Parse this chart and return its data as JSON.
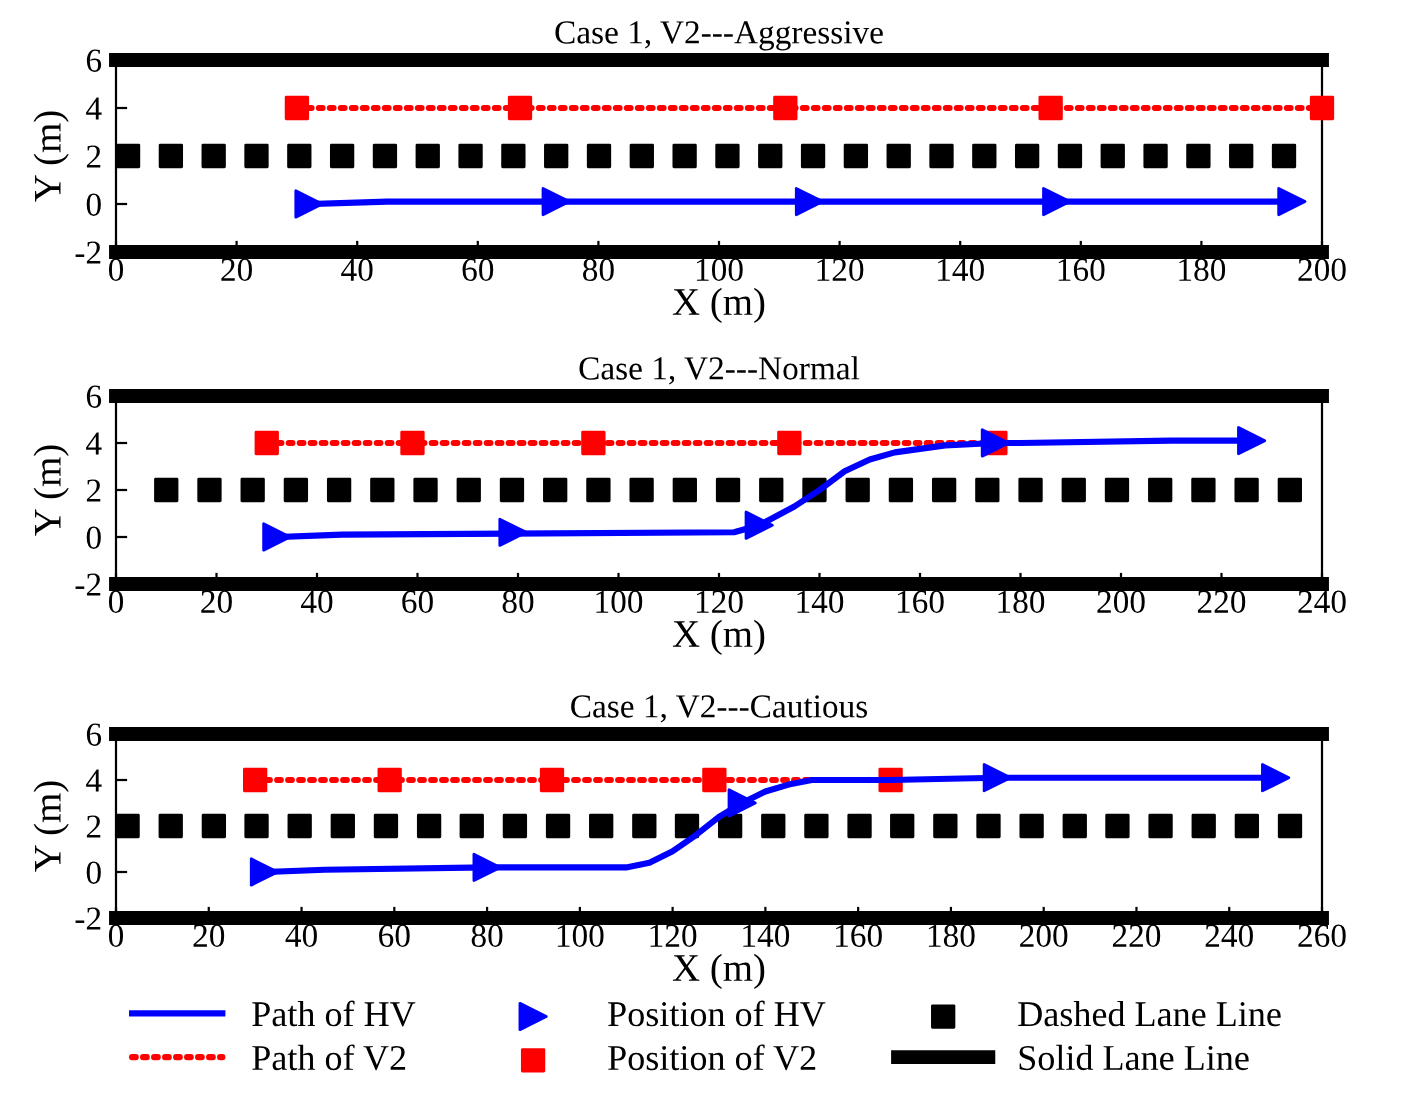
{
  "chart_data": [
    {
      "type": "line",
      "title": "Case 1, V2---Aggressive",
      "xlabel": "X (m)",
      "ylabel": "Y (m)",
      "xlim": [
        0,
        200
      ],
      "xticks": [
        0,
        20,
        40,
        60,
        80,
        100,
        120,
        140,
        160,
        180,
        200
      ],
      "ylim": [
        -2,
        6
      ],
      "yticks": [
        -2,
        0,
        2,
        4,
        6
      ],
      "grid": false,
      "series": [
        {
          "type": "line",
          "color": "#000000",
          "x": [
            0,
            200
          ],
          "values": [
            6,
            6
          ]
        },
        {
          "type": "line",
          "color": "#000000",
          "x": [
            0,
            200
          ],
          "values": [
            -2,
            -2
          ]
        },
        {
          "type": "scatter",
          "marker": "square",
          "color": "#000000",
          "x": [
            2,
            9.1,
            16.2,
            23.3,
            30.4,
            37.5,
            44.6,
            51.7,
            58.8,
            65.9,
            73.0,
            80.1,
            87.2,
            94.3,
            101.4,
            108.5,
            115.6,
            122.7,
            129.8,
            136.9,
            144.0,
            151.1,
            158.2,
            165.3,
            172.4,
            179.5,
            186.6,
            193.7
          ],
          "values": [
            2,
            2,
            2,
            2,
            2,
            2,
            2,
            2,
            2,
            2,
            2,
            2,
            2,
            2,
            2,
            2,
            2,
            2,
            2,
            2,
            2,
            2,
            2,
            2,
            2,
            2,
            2,
            2
          ]
        },
        {
          "type": "line",
          "line_style": "dotted",
          "color": "#ff0000",
          "x": [
            30,
            200
          ],
          "values": [
            4,
            4
          ]
        },
        {
          "type": "scatter",
          "marker": "square",
          "color": "#ff0000",
          "x": [
            30,
            67,
            111,
            155,
            200
          ],
          "values": [
            4,
            4,
            4,
            4,
            4
          ]
        },
        {
          "type": "line",
          "line_style": "solid",
          "color": "#0000ff",
          "x": [
            32,
            45,
            195
          ],
          "values": [
            0,
            0.1,
            0.1
          ]
        },
        {
          "type": "scatter",
          "marker": "triangle",
          "color": "#0000ff",
          "x": [
            32,
            73,
            115,
            156,
            195
          ],
          "values": [
            0,
            0.1,
            0.1,
            0.1,
            0.1
          ]
        }
      ]
    },
    {
      "type": "line",
      "title": "Case 1, V2---Normal",
      "xlabel": "X (m)",
      "ylabel": "Y (m)",
      "xlim": [
        0,
        240
      ],
      "xticks": [
        0,
        20,
        40,
        60,
        80,
        100,
        120,
        140,
        160,
        180,
        200,
        220,
        240
      ],
      "ylim": [
        -2,
        6
      ],
      "yticks": [
        -2,
        0,
        2,
        4,
        6
      ],
      "grid": false,
      "series": [
        {
          "type": "line",
          "color": "#000000",
          "x": [
            0,
            240
          ],
          "values": [
            6,
            6
          ]
        },
        {
          "type": "line",
          "color": "#000000",
          "x": [
            0,
            240
          ],
          "values": [
            -2,
            -2
          ]
        },
        {
          "type": "scatter",
          "marker": "square",
          "color": "#000000",
          "x": [
            10,
            18.6,
            27.2,
            35.8,
            44.4,
            53,
            61.6,
            70.2,
            78.8,
            87.4,
            96,
            104.6,
            113.2,
            121.8,
            130.4,
            139,
            147.6,
            156.2,
            164.8,
            173.4,
            182,
            190.6,
            199.2,
            207.8,
            216.4,
            225,
            233.6
          ],
          "values": [
            2,
            2,
            2,
            2,
            2,
            2,
            2,
            2,
            2,
            2,
            2,
            2,
            2,
            2,
            2,
            2,
            2,
            2,
            2,
            2,
            2,
            2,
            2,
            2,
            2,
            2,
            2
          ]
        },
        {
          "type": "line",
          "line_style": "dotted",
          "color": "#ff0000",
          "x": [
            30,
            175
          ],
          "values": [
            4,
            4
          ]
        },
        {
          "type": "scatter",
          "marker": "square",
          "color": "#ff0000",
          "x": [
            30,
            59,
            95,
            134,
            175
          ],
          "values": [
            4,
            4,
            4,
            4,
            4
          ]
        },
        {
          "type": "line",
          "line_style": "solid",
          "color": "#0000ff",
          "x": [
            32,
            45,
            123,
            128,
            135,
            140,
            145,
            150,
            155,
            165,
            175,
            180,
            210,
            226
          ],
          "values": [
            0,
            0.1,
            0.2,
            0.5,
            1.3,
            2.0,
            2.8,
            3.3,
            3.6,
            3.9,
            4.0,
            4.0,
            4.1,
            4.1
          ]
        },
        {
          "type": "scatter",
          "marker": "triangle",
          "color": "#0000ff",
          "x": [
            32,
            79,
            128,
            175,
            226
          ],
          "values": [
            0,
            0.2,
            0.5,
            4.0,
            4.1
          ]
        }
      ]
    },
    {
      "type": "line",
      "title": "Case 1, V2---Cautious",
      "xlabel": "X (m)",
      "ylabel": "Y (m)",
      "xlim": [
        0,
        260
      ],
      "xticks": [
        0,
        20,
        40,
        60,
        80,
        100,
        120,
        140,
        160,
        180,
        200,
        220,
        240,
        260
      ],
      "ylim": [
        -2,
        6
      ],
      "yticks": [
        -2,
        0,
        2,
        4,
        6
      ],
      "grid": false,
      "legend": "bottom",
      "series": [
        {
          "type": "line",
          "name": "Solid Lane Line",
          "color": "#000000",
          "x": [
            0,
            260
          ],
          "values": [
            6,
            6
          ]
        },
        {
          "type": "line",
          "color": "#000000",
          "x": [
            0,
            260
          ],
          "values": [
            -2,
            -2
          ]
        },
        {
          "type": "scatter",
          "name": "Dashed Lane Line",
          "marker": "square",
          "color": "#000000",
          "x": [
            2.5,
            11.8,
            21.1,
            30.3,
            39.6,
            48.9,
            58.2,
            67.5,
            76.7,
            86.0,
            95.3,
            104.6,
            113.9,
            123.1,
            132.4,
            141.7,
            151.0,
            160.3,
            169.5,
            178.8,
            188.1,
            197.4,
            206.7,
            215.9,
            225.2,
            234.5,
            243.8,
            253.1
          ],
          "values": [
            2,
            2,
            2,
            2,
            2,
            2,
            2,
            2,
            2,
            2,
            2,
            2,
            2,
            2,
            2,
            2,
            2,
            2,
            2,
            2,
            2,
            2,
            2,
            2,
            2,
            2,
            2,
            2
          ]
        },
        {
          "type": "line",
          "name": "Path of V2",
          "line_style": "dotted",
          "color": "#ff0000",
          "x": [
            30,
            167
          ],
          "values": [
            4,
            4
          ]
        },
        {
          "type": "scatter",
          "name": "Position of V2",
          "marker": "square",
          "color": "#ff0000",
          "x": [
            30,
            59,
            94,
            129,
            167
          ],
          "values": [
            4,
            4,
            4,
            4,
            4
          ]
        },
        {
          "type": "line",
          "name": "Path of HV",
          "line_style": "solid",
          "color": "#0000ff",
          "x": [
            32,
            45,
            80,
            110,
            115,
            120,
            125,
            130,
            135,
            140,
            145,
            150,
            167,
            190,
            225,
            250
          ],
          "values": [
            0,
            0.1,
            0.2,
            0.2,
            0.4,
            0.9,
            1.6,
            2.4,
            3.0,
            3.5,
            3.8,
            4.0,
            4.0,
            4.1,
            4.1,
            4.1
          ]
        },
        {
          "type": "scatter",
          "name": "Position of HV",
          "marker": "triangle",
          "color": "#0000ff",
          "x": [
            32,
            80,
            135,
            190,
            250
          ],
          "values": [
            0,
            0.2,
            3.0,
            4.1,
            4.1
          ]
        }
      ]
    }
  ]
}
